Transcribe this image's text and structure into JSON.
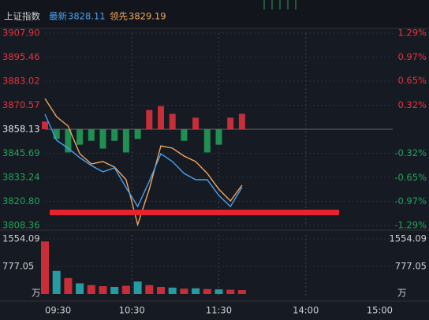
{
  "chart_data": [
    {
      "type": "line",
      "title": "上证指数",
      "x": [
        0,
        8,
        16,
        24,
        32,
        40,
        48,
        56,
        64,
        72,
        80,
        88,
        96,
        104,
        112,
        120,
        128,
        136
      ],
      "xlim": [
        0,
        240
      ],
      "ylim": [
        3808.36,
        3907.9
      ],
      "yticks": [
        {
          "value": 3907.9,
          "label": "3907.90"
        },
        3895.46,
        3883.02,
        3870.57,
        3858.13,
        3845.69,
        3833.24,
        {
          "value": 3820.8,
          "label": "3820.80"
        },
        3808.36
      ],
      "y2lim": [
        -1.29,
        1.29
      ],
      "y2ticks": [
        {
          "value": 1.29,
          "label": "1.29%"
        },
        {
          "value": 0.97,
          "label": "0.97%"
        },
        {
          "value": 0.65,
          "label": "0.65%"
        },
        {
          "value": 0.32,
          "label": "0.32%"
        },
        {
          "value": -0.32,
          "label": "-0.32%"
        },
        {
          "value": -0.65,
          "label": "-0.65%"
        },
        {
          "value": -0.97,
          "label": "-0.97%"
        },
        {
          "value": -1.29,
          "label": "-1.29%"
        }
      ],
      "up_color": "#e8333c",
      "down_color": "#22a55a",
      "flat_color": "#e6e6e6",
      "series": [
        {
          "name": "最新",
          "type": "line",
          "color": "#4aa0ee",
          "values": [
            3865.88,
            3852.42,
            3848.34,
            3843.44,
            3839.36,
            3836.1,
            3838.14,
            3827.94,
            3818.15,
            3831.2,
            3845.48,
            3841.4,
            3835.28,
            3832.02,
            3832.02,
            3823.86,
            3818.15,
            3828.11
          ]
        },
        {
          "name": "领先",
          "type": "line",
          "color": "#f0a55e",
          "values": [
            3874.04,
            3864.66,
            3859.76,
            3845.48,
            3840.18,
            3841.4,
            3838.55,
            3832.02,
            3808.76,
            3827.12,
            3849.56,
            3848.34,
            3844.26,
            3841.4,
            3835.28,
            3827.12,
            3821.0,
            3829.19
          ]
        },
        {
          "type": "diff",
          "values": [
            4,
            -5,
            -12,
            -8,
            -6,
            -10,
            -6,
            -12,
            -5,
            10,
            12,
            8,
            -6,
            6,
            -12,
            -8,
            6,
            8
          ]
        }
      ]
    },
    {
      "type": "bar",
      "unit": "万",
      "x": [
        0,
        8,
        16,
        24,
        32,
        40,
        48,
        56,
        64,
        72,
        80,
        88,
        96,
        104,
        112,
        120,
        128,
        136
      ],
      "xlim": [
        0,
        240
      ],
      "xticks": [
        {
          "value": 0,
          "label": "09:30"
        },
        {
          "value": 60,
          "label": "10:30"
        },
        {
          "value": 120,
          "label": "11:30"
        },
        {
          "value": 180,
          "label": "14:00"
        },
        {
          "value": 240,
          "label": "15:00"
        }
      ],
      "ylim": [
        0,
        1554.09
      ],
      "yticks": [
        1554.09,
        777.05
      ],
      "series": [
        {
          "values": [
            1480,
            650,
            450,
            300,
            250,
            220,
            200,
            230,
            350,
            250,
            200,
            180,
            150,
            160,
            140,
            130,
            120,
            110
          ],
          "colors": [
            "#e8333c",
            "#2ab3b8",
            "#e8333c",
            "#2ab3b8",
            "#e8333c",
            "#e8333c",
            "#2ab3b8",
            "#e8333c",
            "#2ab3b8",
            "#e8333c",
            "#e8333c",
            "#2ab3b8",
            "#e8333c",
            "#2ab3b8",
            "#e8333c",
            "#2ab3b8",
            "#e8333c",
            "#e8333c"
          ]
        }
      ]
    }
  ]
}
